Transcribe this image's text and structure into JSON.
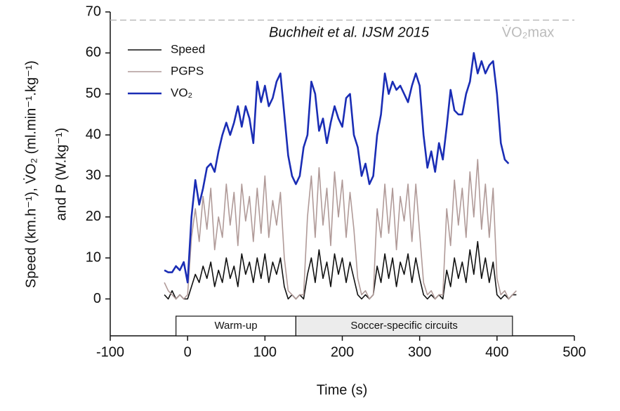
{
  "chart_data": {
    "type": "line",
    "annotations": [
      "Buchheit et al. IJSM 2015",
      "V̇O₂max"
    ],
    "xlabel": "Time (s)",
    "ylabel": [
      "Speed (km.h⁻¹), V̇O₂ (ml.min⁻¹.kg⁻¹)",
      "and P (W.kg⁻¹)"
    ],
    "xlim": [
      -100,
      500
    ],
    "xticks": [
      -100,
      0,
      100,
      200,
      300,
      400,
      500
    ],
    "ylim": [
      -9,
      70
    ],
    "yticks": [
      0,
      10,
      20,
      30,
      40,
      50,
      60,
      70
    ],
    "reference_line": {
      "value": 68,
      "color": "#bbbbbb"
    },
    "phases": [
      {
        "label": "Warm-up",
        "start": -15,
        "end": 140,
        "color": "#ffffff"
      },
      {
        "label": "Soccer-specific circuits",
        "start": 140,
        "end": 420,
        "color": "#ececec"
      }
    ],
    "x": [
      -30,
      -25,
      -20,
      -15,
      -10,
      -5,
      0,
      5,
      10,
      15,
      20,
      25,
      30,
      35,
      40,
      45,
      50,
      55,
      60,
      65,
      70,
      75,
      80,
      85,
      90,
      95,
      100,
      105,
      110,
      115,
      120,
      125,
      130,
      135,
      140,
      145,
      150,
      155,
      160,
      165,
      170,
      175,
      180,
      185,
      190,
      195,
      200,
      205,
      210,
      215,
      220,
      225,
      230,
      235,
      240,
      245,
      250,
      255,
      260,
      265,
      270,
      275,
      280,
      285,
      290,
      295,
      300,
      305,
      310,
      315,
      320,
      325,
      330,
      335,
      340,
      345,
      350,
      355,
      360,
      365,
      370,
      375,
      380,
      385,
      390,
      395,
      400,
      405,
      410,
      415,
      420,
      425
    ],
    "series": [
      {
        "name": "Speed",
        "color": "#111111",
        "width": 1.6,
        "values": [
          1,
          0,
          2,
          0,
          1,
          0,
          0,
          3,
          6,
          4,
          8,
          5,
          9,
          3,
          7,
          4,
          10,
          5,
          8,
          3,
          11,
          6,
          9,
          4,
          10,
          5,
          11,
          4,
          9,
          6,
          10,
          3,
          0,
          1,
          0,
          1,
          0,
          6,
          10,
          4,
          12,
          5,
          9,
          3,
          11,
          6,
          10,
          4,
          9,
          5,
          1,
          0,
          1,
          0,
          1,
          8,
          4,
          11,
          5,
          10,
          3,
          9,
          6,
          11,
          4,
          10,
          5,
          1,
          0,
          1,
          0,
          1,
          0,
          7,
          3,
          10,
          5,
          9,
          4,
          12,
          6,
          14,
          5,
          10,
          4,
          9,
          1,
          0,
          1,
          0,
          1,
          1
        ]
      },
      {
        "name": "PGPS",
        "color": "#b09a98",
        "width": 1.6,
        "values": [
          4,
          2,
          1,
          0,
          1,
          0,
          1,
          15,
          22,
          14,
          25,
          17,
          27,
          12,
          20,
          15,
          28,
          18,
          26,
          13,
          28,
          19,
          25,
          14,
          27,
          16,
          30,
          15,
          24,
          18,
          26,
          10,
          2,
          1,
          0,
          1,
          1,
          20,
          30,
          15,
          32,
          18,
          27,
          13,
          31,
          20,
          29,
          15,
          26,
          17,
          5,
          1,
          2,
          0,
          1,
          22,
          15,
          28,
          16,
          27,
          12,
          25,
          19,
          28,
          14,
          28,
          16,
          4,
          1,
          2,
          0,
          1,
          1,
          22,
          13,
          29,
          18,
          27,
          15,
          31,
          20,
          34,
          17,
          28,
          15,
          27,
          5,
          1,
          2,
          0,
          1,
          2
        ]
      },
      {
        "name": "VO₂",
        "color": "#1a2db5",
        "width": 2.6,
        "values": [
          7,
          6.5,
          6.5,
          8,
          7,
          9,
          4,
          20,
          29,
          23,
          27,
          32,
          33,
          31,
          36,
          40,
          43,
          40,
          43,
          47,
          42,
          47,
          44,
          38,
          53,
          48,
          52,
          47,
          49,
          53,
          55,
          45,
          35,
          30,
          28,
          30,
          37,
          40,
          53,
          50,
          41,
          44,
          38,
          43,
          47,
          44,
          42,
          49,
          50,
          40,
          37,
          30,
          33,
          28,
          30,
          40,
          45,
          55,
          50,
          53,
          51,
          52,
          50,
          48,
          52,
          55,
          52,
          40,
          32,
          36,
          31,
          38,
          34,
          42,
          51,
          46,
          45,
          45,
          50,
          53,
          60,
          55,
          58,
          55,
          57,
          58,
          50,
          38,
          34,
          33,
          null,
          null
        ]
      }
    ],
    "legend": "upper left"
  }
}
